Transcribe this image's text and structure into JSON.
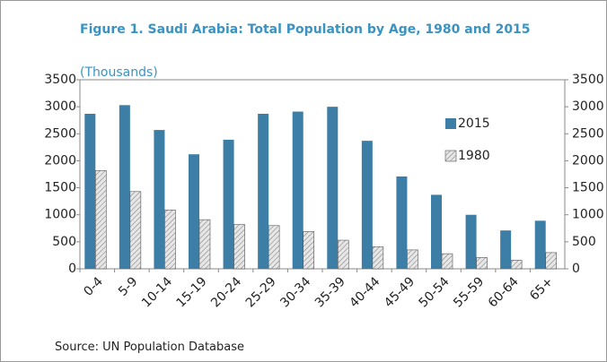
{
  "chart_data": {
    "type": "bar",
    "title": "Figure 1. Saudi Arabia: Total Population by Age, 1980 and 2015",
    "subtitle": "(Thousands)",
    "source": "Source: UN Population Database",
    "categories": [
      "0-4",
      "5-9",
      "10-14",
      "15-19",
      "20-24",
      "25-29",
      "30-34",
      "35-39",
      "40-44",
      "45-49",
      "50-54",
      "55-59",
      "60-64",
      "65+"
    ],
    "series": [
      {
        "name": "2015",
        "color": "#3d7ea6",
        "values": [
          2870,
          3030,
          2570,
          2120,
          2390,
          2870,
          2910,
          3000,
          2370,
          1710,
          1370,
          1000,
          710,
          890
        ]
      },
      {
        "name": "1980",
        "color": "#d9d9d9",
        "hatch": true,
        "values": [
          1820,
          1430,
          1090,
          910,
          820,
          800,
          690,
          530,
          410,
          350,
          280,
          210,
          160,
          300
        ]
      }
    ],
    "ylim": [
      0,
      3500
    ],
    "yticks": [
      0,
      500,
      1000,
      1500,
      2000,
      2500,
      3000,
      3500
    ],
    "y2lim": [
      0,
      3500
    ],
    "y2ticks": [
      0,
      500,
      1000,
      1500,
      2000,
      2500,
      3000,
      3500
    ]
  }
}
